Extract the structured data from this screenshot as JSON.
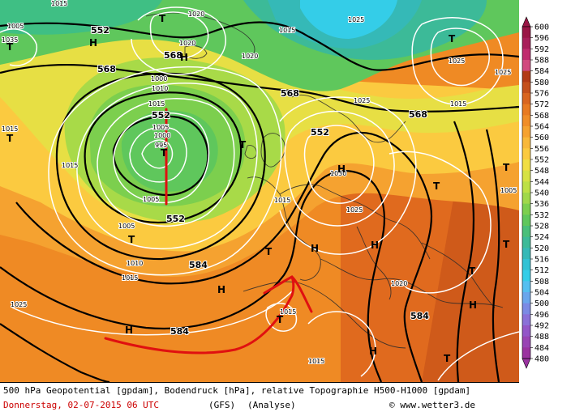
{
  "map": {
    "layers": [
      "geopotential-shading",
      "geopotential-contours",
      "pressure-isobars",
      "coastlines",
      "analysis-overlay"
    ],
    "geopotential_labels": [
      "552",
      "568",
      "552",
      "568",
      "552",
      "584",
      "568",
      "552",
      "568",
      "584",
      "584"
    ],
    "pressure_labels": [
      "1015",
      "1005",
      "1020",
      "1035",
      "1020",
      "1015",
      "1020",
      "1025",
      "1000",
      "1010",
      "1015",
      "1025",
      "1015",
      "1005",
      "1000",
      "995",
      "1005",
      "1015",
      "1005",
      "1010",
      "1015",
      "1025",
      "1030",
      "1025",
      "1015",
      "1020",
      "1015",
      "1015",
      "1015",
      "1025",
      "1025",
      "1005"
    ],
    "pressure_systems": [
      {
        "type": "T"
      },
      {
        "type": "T"
      },
      {
        "type": "H"
      },
      {
        "type": "H"
      },
      {
        "type": "T"
      },
      {
        "type": "T"
      },
      {
        "type": "T"
      },
      {
        "type": "T"
      },
      {
        "type": "H"
      },
      {
        "type": "T"
      },
      {
        "type": "T"
      },
      {
        "type": "T"
      },
      {
        "type": "H"
      },
      {
        "type": "H"
      },
      {
        "type": "H"
      },
      {
        "type": "T"
      },
      {
        "type": "H"
      },
      {
        "type": "T"
      },
      {
        "type": "T"
      },
      {
        "type": "H"
      },
      {
        "type": "H"
      },
      {
        "type": "T"
      },
      {
        "type": "T"
      }
    ]
  },
  "colorbar": {
    "levels": [
      "600",
      "596",
      "592",
      "588",
      "584",
      "580",
      "576",
      "572",
      "568",
      "564",
      "560",
      "556",
      "552",
      "548",
      "544",
      "540",
      "536",
      "532",
      "528",
      "524",
      "520",
      "516",
      "512",
      "508",
      "504",
      "500",
      "496",
      "492",
      "488",
      "484",
      "480"
    ],
    "colors": [
      "#9a1646",
      "#a81f5a",
      "#c02c6e",
      "#d1497e",
      "#b23b16",
      "#c4501c",
      "#d96520",
      "#e87a22",
      "#f08d28",
      "#f5a230",
      "#f8b83a",
      "#fbca40",
      "#f1de42",
      "#d6e244",
      "#bde046",
      "#a0d84a",
      "#7ccf4e",
      "#5fc75c",
      "#49bf7a",
      "#3cba98",
      "#35b9b7",
      "#32c2d4",
      "#34cde8",
      "#55bff0",
      "#6aa6ec",
      "#7b8ae4",
      "#8a70d8",
      "#9356c8",
      "#9944b4",
      "#9a33a0"
    ]
  },
  "caption": {
    "line1": "500 hPa Geopotential [gpdam], Bodendruck [hPa], relative Topographie H500-H1000 [gpdam]",
    "date": "Donnerstag, 02-07-2015  06 UTC",
    "model": "(GFS)",
    "analysis": "(Analyse)",
    "copyright": "© www.wetter3.de"
  }
}
